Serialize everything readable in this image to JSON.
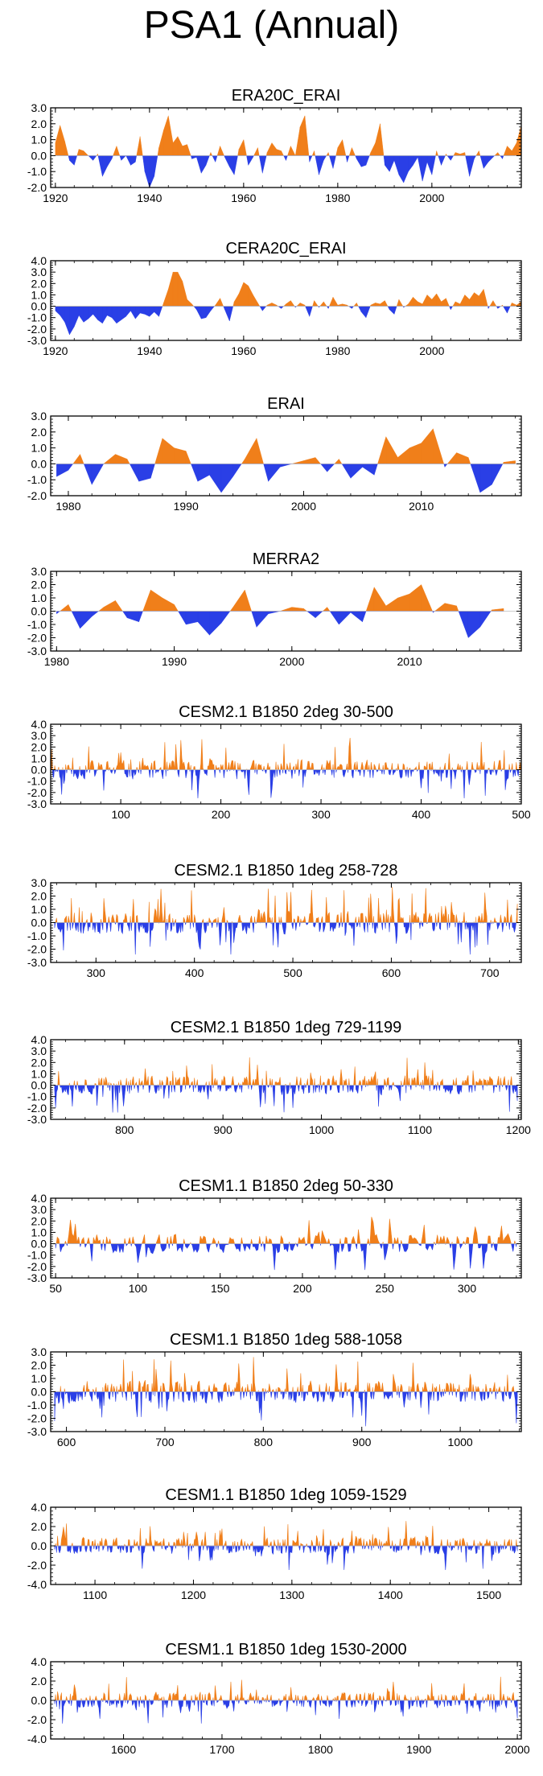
{
  "title": "PSA1 (Annual)",
  "colors": {
    "positive": "#f07f1a",
    "negative": "#2a3fe6",
    "axis": "#000000"
  },
  "chart_data": [
    {
      "type": "area",
      "title": "ERA20C_ERAI",
      "x_start": 1920,
      "x_end": 2018,
      "xlim": [
        1919,
        2019
      ],
      "xticks": [
        1920,
        1940,
        1960,
        1980,
        2000
      ],
      "ylim": [
        -2.0,
        3.0
      ],
      "yticks": [
        "3.0",
        "2.0",
        "1.0",
        "0.0",
        "-1.0",
        "-2.0"
      ],
      "values": [
        0.8,
        1.9,
        0.9,
        -0.3,
        -0.6,
        0.4,
        0.3,
        0.0,
        -0.3,
        0.1,
        -1.3,
        -0.7,
        -0.2,
        0.6,
        -0.3,
        0.0,
        -0.6,
        -0.4,
        1.2,
        -1.0,
        -2.0,
        -1.3,
        0.5,
        1.6,
        2.5,
        0.8,
        1.2,
        0.6,
        0.7,
        -0.2,
        -0.1,
        -1.1,
        -0.6,
        0.2,
        -0.4,
        0.6,
        -0.1,
        -0.7,
        -1.2,
        0.4,
        1.0,
        -0.6,
        -0.1,
        0.5,
        -1.1,
        0.2,
        0.8,
        0.4,
        0.3,
        -0.3,
        0.6,
        0.0,
        1.8,
        2.5,
        -0.4,
        0.3,
        -1.2,
        -0.3,
        0.2,
        -0.8,
        0.5,
        1.0,
        -0.4,
        0.5,
        -0.2,
        -0.7,
        -0.6,
        0.2,
        0.8,
        2.0,
        -0.6,
        -1.0,
        -0.3,
        -1.2,
        -1.7,
        -1.0,
        -0.6,
        -0.1,
        -1.6,
        -0.4,
        -1.2,
        0.3,
        -0.6,
        0.1,
        -0.3,
        0.2,
        0.1,
        0.2,
        -1.3,
        -0.2,
        0.3,
        -0.8,
        -0.4,
        -0.1,
        0.2,
        -0.2,
        0.6,
        0.3,
        0.8,
        1.9
      ]
    },
    {
      "type": "area",
      "title": "CERA20C_ERAI",
      "x_start": 1920,
      "x_end": 2018,
      "xlim": [
        1919,
        2019
      ],
      "xticks": [
        1920,
        1940,
        1960,
        1980,
        2000
      ],
      "ylim": [
        -3.0,
        4.0
      ],
      "yticks": [
        "4.0",
        "3.0",
        "2.0",
        "1.0",
        "0.0",
        "-1.0",
        "-2.0",
        "-3.0"
      ],
      "values": [
        -0.4,
        -0.8,
        -1.4,
        -2.5,
        -1.8,
        -0.8,
        -1.4,
        -1.1,
        -0.7,
        -1.2,
        -1.5,
        -0.8,
        -1.0,
        -1.5,
        -1.2,
        -0.9,
        -0.4,
        -1.1,
        -0.6,
        -0.7,
        -0.9,
        -0.5,
        -0.9,
        0.3,
        1.5,
        3.0,
        3.0,
        2.2,
        0.6,
        0.2,
        -0.3,
        -1.1,
        -1.0,
        -0.4,
        0.1,
        0.7,
        -0.3,
        -1.3,
        0.4,
        1.1,
        2.1,
        1.8,
        1.0,
        0.3,
        -0.4,
        0.1,
        0.3,
        0.1,
        -0.2,
        0.2,
        0.5,
        -0.1,
        0.3,
        0.1,
        -0.9,
        0.5,
        -0.1,
        0.4,
        -0.2,
        0.8,
        0.1,
        0.2,
        0.1,
        -0.2,
        0.3,
        -0.5,
        -1.0,
        0.1,
        0.3,
        0.2,
        0.5,
        -0.3,
        -0.7,
        0.6,
        -0.1,
        0.2,
        0.8,
        0.4,
        0.2,
        1.0,
        0.6,
        1.1,
        0.4,
        0.7,
        -0.3,
        0.4,
        0.2,
        1.0,
        0.6,
        1.2,
        0.9,
        1.5,
        -0.2,
        0.5,
        -0.2,
        0.1,
        -0.6,
        0.3,
        0.1,
        0.4
      ]
    },
    {
      "type": "area",
      "title": "ERAI",
      "x_start": 1979,
      "x_end": 2018,
      "xlim": [
        1978.5,
        2018.5
      ],
      "xticks": [
        1980,
        1990,
        2000,
        2010
      ],
      "ylim": [
        -2.0,
        3.0
      ],
      "yticks": [
        "3.0",
        "2.0",
        "1.0",
        "0.0",
        "-1.0",
        "-2.0"
      ],
      "values": [
        -0.8,
        -0.4,
        0.6,
        -1.3,
        0.0,
        0.6,
        0.3,
        -1.1,
        -0.9,
        1.6,
        1.0,
        0.8,
        -1.1,
        -0.7,
        -1.8,
        -0.8,
        0.3,
        1.6,
        -1.1,
        -0.2,
        0.0,
        0.2,
        0.4,
        -0.5,
        0.3,
        -0.9,
        -0.2,
        -0.7,
        1.7,
        0.4,
        1.0,
        1.3,
        2.2,
        -0.2,
        0.7,
        0.4,
        -1.8,
        -1.3,
        0.1,
        0.2
      ]
    },
    {
      "type": "area",
      "title": "MERRA2",
      "x_start": 1980,
      "x_end": 2018,
      "xlim": [
        1979.5,
        2019.5
      ],
      "xticks": [
        1980,
        1990,
        2000,
        2010
      ],
      "ylim": [
        -3.0,
        3.0
      ],
      "yticks": [
        "3.0",
        "2.0",
        "1.0",
        "0.0",
        "-1.0",
        "-2.0",
        "-3.0"
      ],
      "values": [
        -0.2,
        0.5,
        -1.3,
        -0.4,
        0.3,
        0.8,
        -0.5,
        -0.8,
        1.6,
        1.0,
        0.5,
        -1.0,
        -0.8,
        -1.8,
        -0.9,
        0.3,
        1.6,
        -1.2,
        -0.2,
        0.0,
        0.3,
        0.2,
        -0.5,
        0.3,
        -1.0,
        -0.1,
        -0.8,
        1.8,
        0.4,
        1.0,
        1.3,
        2.0,
        -0.1,
        0.6,
        0.4,
        -2.0,
        -1.2,
        0.1,
        0.2
      ]
    },
    {
      "type": "area",
      "title": "CESM2.1 B1850 2deg 30-500",
      "x_start": 30,
      "x_end": 500,
      "xlim": [
        30,
        500
      ],
      "xticks": [
        100,
        200,
        300,
        400,
        500
      ],
      "ylim": [
        -3.0,
        4.0
      ],
      "yticks": [
        "4.0",
        "3.0",
        "2.0",
        "1.0",
        "0.0",
        "-1.0",
        "-2.0",
        "-3.0"
      ],
      "seed": 11,
      "pos_max": 2.8,
      "neg_max": 2.5
    },
    {
      "type": "area",
      "title": "CESM2.1 B1850 1deg 258-728",
      "x_start": 258,
      "x_end": 728,
      "xlim": [
        254,
        732
      ],
      "xticks": [
        300,
        400,
        500,
        600,
        700
      ],
      "ylim": [
        -3.0,
        3.0
      ],
      "yticks": [
        "3.0",
        "2.0",
        "1.0",
        "0.0",
        "-1.0",
        "-2.0",
        "-3.0"
      ],
      "seed": 23,
      "pos_max": 2.9,
      "neg_max": 2.4
    },
    {
      "type": "area",
      "title": "CESM2.1 B1850 1deg 729-1199",
      "x_start": 729,
      "x_end": 1199,
      "xlim": [
        725,
        1203
      ],
      "xticks": [
        800,
        900,
        1000,
        1100,
        1200
      ],
      "ylim": [
        -3.0,
        4.0
      ],
      "yticks": [
        "4.0",
        "3.0",
        "2.0",
        "1.0",
        "0.0",
        "-1.0",
        "-2.0",
        "-3.0"
      ],
      "seed": 37,
      "pos_max": 2.8,
      "neg_max": 2.4
    },
    {
      "type": "area",
      "title": "CESM1.1 B1850 2deg 50-330",
      "x_start": 50,
      "x_end": 330,
      "xlim": [
        47,
        333
      ],
      "xticks": [
        50,
        100,
        150,
        200,
        250,
        300
      ],
      "ylim": [
        -3.0,
        4.0
      ],
      "yticks": [
        "4.0",
        "3.0",
        "2.0",
        "1.0",
        "0.0",
        "-1.0",
        "-2.0",
        "-3.0"
      ],
      "seed": 41,
      "pos_max": 2.9,
      "neg_max": 2.3
    },
    {
      "type": "area",
      "title": "CESM1.1 B1850 1deg 588-1058",
      "x_start": 588,
      "x_end": 1058,
      "xlim": [
        584,
        1062
      ],
      "xticks": [
        600,
        700,
        800,
        900,
        1000
      ],
      "ylim": [
        -3.0,
        3.0
      ],
      "yticks": [
        "3.0",
        "2.0",
        "1.0",
        "0.0",
        "-1.0",
        "-2.0",
        "-3.0"
      ],
      "seed": 53,
      "pos_max": 2.9,
      "neg_max": 2.6
    },
    {
      "type": "area",
      "title": "CESM1.1 B1850 1deg 1059-1529",
      "x_start": 1059,
      "x_end": 1529,
      "xlim": [
        1055,
        1533
      ],
      "xticks": [
        1100,
        1200,
        1300,
        1400,
        1500
      ],
      "ylim": [
        -4.0,
        4.0
      ],
      "yticks": [
        "4.0",
        "2.0",
        "0.0",
        "-2.0",
        "-4.0"
      ],
      "seed": 67,
      "pos_max": 3.0,
      "neg_max": 2.5
    },
    {
      "type": "area",
      "title": "CESM1.1 B1850 1deg 1530-2000",
      "x_start": 1530,
      "x_end": 2000,
      "xlim": [
        1526,
        2004
      ],
      "xticks": [
        1600,
        1700,
        1800,
        1900,
        2000
      ],
      "ylim": [
        -4.0,
        4.0
      ],
      "yticks": [
        "4.0",
        "2.0",
        "0.0",
        "-2.0",
        "-4.0"
      ],
      "seed": 79,
      "pos_max": 3.0,
      "neg_max": 2.4
    }
  ]
}
